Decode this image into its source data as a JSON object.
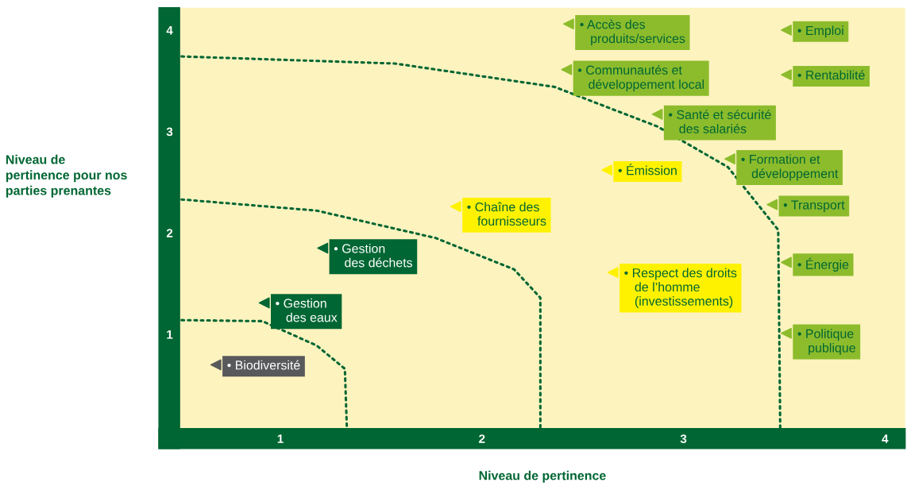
{
  "chart_data": {
    "type": "scatter",
    "xlabel": "Niveau de pertinence",
    "ylabel": "Niveau de\npertinence pour nos\nparties prenantes",
    "xlim": [
      0.5,
      4.1
    ],
    "ylim": [
      0.07,
      4.22
    ],
    "xticks": [
      1,
      2,
      3,
      4
    ],
    "yticks": [
      1,
      2,
      3,
      4
    ],
    "grid": false,
    "legend": false,
    "series": [
      {
        "marker": "triangle",
        "x": [
          2.43,
          3.51,
          2.42,
          3.51,
          2.87,
          2.62,
          3.23,
          3.44,
          1.87,
          3.51,
          2.65,
          1.21,
          0.92,
          3.51,
          0.68
        ],
        "values": [
          4.06,
          4.0,
          3.61,
          3.56,
          3.17,
          2.62,
          2.73,
          2.28,
          2.26,
          1.71,
          1.61,
          1.85,
          1.31,
          1.01,
          0.7
        ],
        "colors": [
          "#8cbc2c",
          "#8cbc2c",
          "#8cbc2c",
          "#8cbc2c",
          "#8cbc2c",
          "#fff200",
          "#8cbc2c",
          "#8cbc2c",
          "#fff200",
          "#8cbc2c",
          "#fff200",
          "#006633",
          "#006633",
          "#8cbc2c",
          "#58595b"
        ]
      },
      {
        "type": "line",
        "line_style": "dotted",
        "color": "#006633",
        "x": [
          0.51,
          0.91,
          1.18,
          1.32,
          1.33
        ],
        "values": [
          1.14,
          1.13,
          0.89,
          0.66,
          0.07
        ]
      },
      {
        "type": "line",
        "line_style": "dotted",
        "color": "#006633",
        "x": [
          0.51,
          1.18,
          1.77,
          2.16,
          2.29,
          2.29
        ],
        "values": [
          2.33,
          2.22,
          1.95,
          1.64,
          1.36,
          0.07
        ]
      },
      {
        "type": "line",
        "line_style": "dotted",
        "color": "#006633",
        "x": [
          0.51,
          1.57,
          2.36,
          2.87,
          3.22,
          3.47,
          3.48
        ],
        "values": [
          3.74,
          3.67,
          3.44,
          3.05,
          2.65,
          2.03,
          0.07
        ]
      }
    ],
    "annotations": [
      {
        "text": "• Accès des\n   produits/services",
        "x": 2.43,
        "y": 4.06
      },
      {
        "text": "• Emploi",
        "x": 3.51,
        "y": 4.0
      },
      {
        "text": "• Communautés et\n   développement local",
        "x": 2.42,
        "y": 3.61
      },
      {
        "text": "• Rentabilité",
        "x": 3.51,
        "y": 3.56
      },
      {
        "text": "• Santé et sécurité\n   des salariés",
        "x": 2.87,
        "y": 3.17
      },
      {
        "text": "• Émission",
        "x": 2.62,
        "y": 2.62
      },
      {
        "text": "• Formation et\n   développement",
        "x": 3.23,
        "y": 2.73
      },
      {
        "text": "• Transport",
        "x": 3.44,
        "y": 2.28
      },
      {
        "text": "• Chaîne des\n   fournisseurs",
        "x": 1.87,
        "y": 2.26
      },
      {
        "text": "• Énergie",
        "x": 3.51,
        "y": 1.71
      },
      {
        "text": "• Respect des droits\n   de l’homme\n   (investissements)",
        "x": 2.65,
        "y": 1.61
      },
      {
        "text": "• Gestion\n   des déchets",
        "x": 1.21,
        "y": 1.85
      },
      {
        "text": "• Gestion\n   des eaux",
        "x": 0.92,
        "y": 1.31
      },
      {
        "text": "• Politique\n   publique",
        "x": 3.51,
        "y": 1.01
      },
      {
        "text": "• Biodiversité",
        "x": 0.68,
        "y": 0.7
      }
    ]
  }
}
